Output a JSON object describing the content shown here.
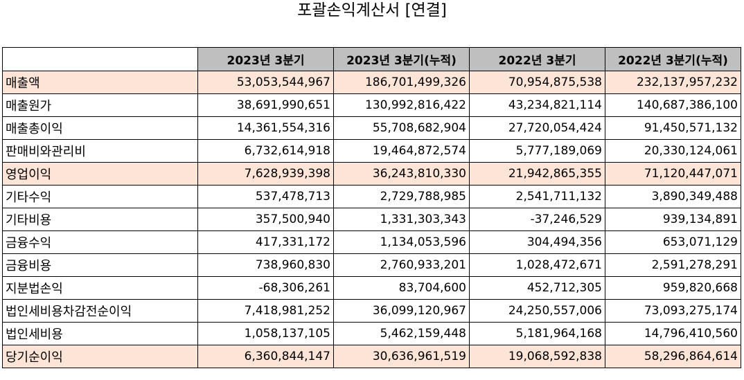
{
  "title": "포괄손익계산서 [연결]",
  "columns": [
    "",
    "2023년 3분기",
    "2023년 3분기(누적)",
    "2022년 3분기",
    "2022년 3분기(누적)"
  ],
  "rows": [
    {
      "label": "매출액",
      "values": [
        "53,053,544,967",
        "186,701,499,326",
        "70,954,875,538",
        "232,137,957,232"
      ],
      "highlight": true
    },
    {
      "label": "매출원가",
      "values": [
        "38,691,990,651",
        "130,992,816,422",
        "43,234,821,114",
        "140,687,386,100"
      ],
      "highlight": false
    },
    {
      "label": "매출총이익",
      "values": [
        "14,361,554,316",
        "55,708,682,904",
        "27,720,054,424",
        "91,450,571,132"
      ],
      "highlight": false
    },
    {
      "label": "판매비와관리비",
      "values": [
        "6,732,614,918",
        "19,464,872,574",
        "5,777,189,069",
        "20,330,124,061"
      ],
      "highlight": false
    },
    {
      "label": "영업이익",
      "values": [
        "7,628,939,398",
        "36,243,810,330",
        "21,942,865,355",
        "71,120,447,071"
      ],
      "highlight": true
    },
    {
      "label": "기타수익",
      "values": [
        "537,478,713",
        "2,729,788,985",
        "2,541,711,132",
        "3,890,349,488"
      ],
      "highlight": false
    },
    {
      "label": "기타비용",
      "values": [
        "357,500,940",
        "1,331,303,343",
        "-37,246,529",
        "939,134,891"
      ],
      "highlight": false
    },
    {
      "label": "금융수익",
      "values": [
        "417,331,172",
        "1,134,053,596",
        "304,494,356",
        "653,071,129"
      ],
      "highlight": false
    },
    {
      "label": "금융비용",
      "values": [
        "738,960,830",
        "2,760,933,201",
        "1,028,472,671",
        "2,591,278,291"
      ],
      "highlight": false
    },
    {
      "label": "지분법손익",
      "values": [
        "-68,306,261",
        "83,704,600",
        "452,712,305",
        "959,820,668"
      ],
      "highlight": false
    },
    {
      "label": "법인세비용차감전순이익",
      "values": [
        "7,418,981,252",
        "36,099,120,967",
        "24,250,557,006",
        "73,093,275,174"
      ],
      "highlight": false
    },
    {
      "label": "법인세비용",
      "values": [
        "1,058,137,105",
        "5,462,159,448",
        "5,181,964,168",
        "14,796,410,560"
      ],
      "highlight": false
    },
    {
      "label": "당기순이익",
      "values": [
        "6,360,844,147",
        "30,636,961,519",
        "19,068,592,838",
        "58,296,864,614"
      ],
      "highlight": true
    }
  ],
  "colors": {
    "header_bg": "#bfbfbf",
    "highlight_bg": "#fce4d6",
    "border": "#000000"
  }
}
